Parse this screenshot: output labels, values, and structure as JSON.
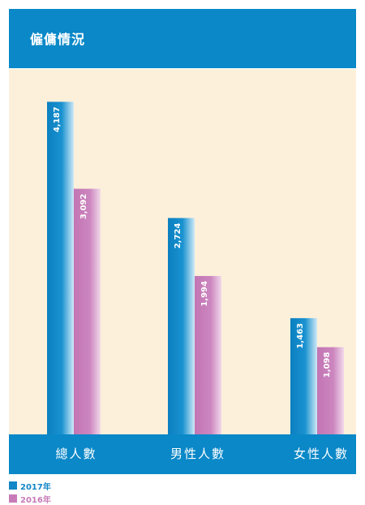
{
  "header": {
    "title": "僱傭情況"
  },
  "colors": {
    "header": "#0a88c8",
    "plot_bg": "#fcf0da",
    "series_2017": "#1286c6",
    "series_2016": "#c77bb8"
  },
  "chart_data": {
    "type": "bar",
    "title": "",
    "xlabel": "",
    "ylabel": "",
    "ylim": [
      0,
      4600
    ],
    "grid": false,
    "legend_position": "bottom-left",
    "categories": [
      "總人數",
      "男性人數",
      "女性人數"
    ],
    "series": [
      {
        "name": "2017年",
        "values": [
          4187,
          2724,
          1463
        ],
        "labels": [
          "4,187",
          "2,724",
          "1,463"
        ]
      },
      {
        "name": "2016年",
        "values": [
          3092,
          1994,
          1098
        ],
        "labels": [
          "3,092",
          "1,994",
          "1,098"
        ]
      }
    ]
  }
}
